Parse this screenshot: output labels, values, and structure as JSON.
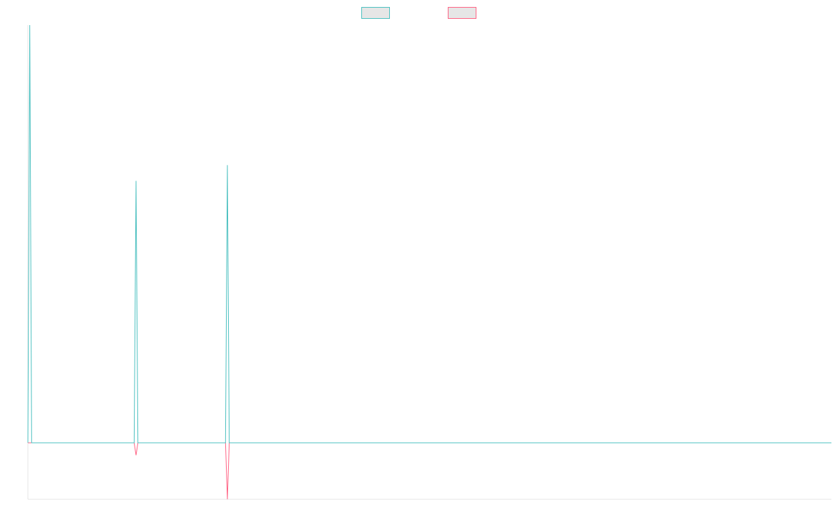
{
  "chart_data": {
    "type": "line",
    "title": "",
    "xlabel": "",
    "ylabel": "",
    "xlim": [
      0,
      431
    ],
    "ylim": [
      -100,
      740
    ],
    "grid": false,
    "legend_position": "top",
    "x": [
      0,
      1,
      2,
      57,
      58,
      59,
      106,
      107,
      108,
      431
    ],
    "series": [
      {
        "name": "",
        "color": "#4bc0c0",
        "values": [
          0,
          740,
          0,
          0,
          464,
          0,
          0,
          492,
          0,
          0
        ]
      },
      {
        "name": "",
        "color": "#ff6384",
        "values": [
          0,
          0,
          0,
          0,
          -22,
          0,
          0,
          -100,
          0,
          0
        ]
      }
    ]
  }
}
